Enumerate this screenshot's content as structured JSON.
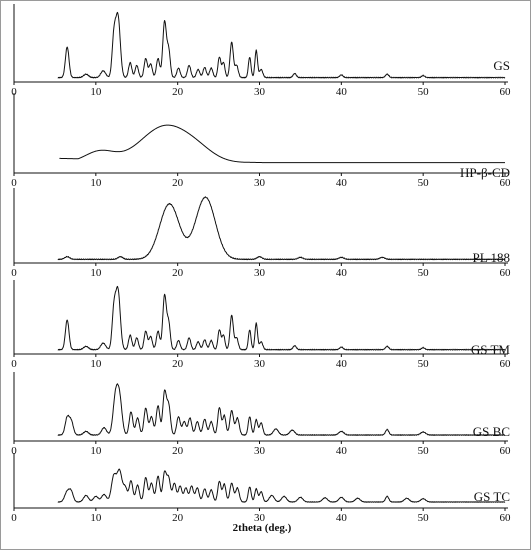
{
  "chart_data": {
    "type": "line",
    "title": "",
    "xlabel": "2theta (deg.)",
    "ylabel": "",
    "xlim": [
      0,
      60
    ],
    "x_ticks": [
      0,
      10,
      20,
      30,
      40,
      50,
      60
    ],
    "grid": false,
    "series": [
      {
        "name": "GS",
        "baseline": 3,
        "peaks": [
          [
            6.5,
            45,
            0.22
          ],
          [
            8.8,
            5,
            0.3
          ],
          [
            10.9,
            10,
            0.3
          ],
          [
            12.2,
            55,
            0.22
          ],
          [
            12.7,
            90,
            0.28
          ],
          [
            14.2,
            22,
            0.2
          ],
          [
            15.0,
            18,
            0.2
          ],
          [
            16.1,
            28,
            0.2
          ],
          [
            16.7,
            20,
            0.2
          ],
          [
            17.6,
            28,
            0.2
          ],
          [
            18.4,
            82,
            0.22
          ],
          [
            18.9,
            40,
            0.2
          ],
          [
            20.1,
            14,
            0.2
          ],
          [
            21.4,
            18,
            0.2
          ],
          [
            22.5,
            12,
            0.2
          ],
          [
            23.3,
            15,
            0.2
          ],
          [
            24.1,
            14,
            0.2
          ],
          [
            25.1,
            30,
            0.18
          ],
          [
            25.6,
            22,
            0.18
          ],
          [
            26.6,
            52,
            0.2
          ],
          [
            27.2,
            18,
            0.2
          ],
          [
            28.8,
            30,
            0.16
          ],
          [
            29.6,
            40,
            0.16
          ],
          [
            30.2,
            12,
            0.2
          ],
          [
            34.3,
            6,
            0.2
          ],
          [
            40.0,
            4,
            0.2
          ],
          [
            45.6,
            5,
            0.2
          ],
          [
            50.0,
            3,
            0.2
          ]
        ]
      },
      {
        "name": "HP-β-CD",
        "baseline": 3,
        "peaks": []
      },
      {
        "name": "PL 188",
        "baseline": 2,
        "peaks": [
          [
            19.0,
            84,
            1.2
          ],
          [
            23.4,
            94,
            1.2
          ],
          [
            6.5,
            4,
            0.3
          ],
          [
            13.0,
            4,
            0.3
          ],
          [
            30.0,
            4,
            0.3
          ],
          [
            35.0,
            3,
            0.3
          ],
          [
            40.0,
            3,
            0.3
          ],
          [
            45.0,
            3,
            0.3
          ]
        ]
      },
      {
        "name": "GS TM",
        "baseline": 3,
        "peaks": [
          [
            6.5,
            45,
            0.22
          ],
          [
            8.8,
            5,
            0.3
          ],
          [
            10.9,
            10,
            0.3
          ],
          [
            12.2,
            55,
            0.22
          ],
          [
            12.7,
            90,
            0.28
          ],
          [
            14.2,
            22,
            0.2
          ],
          [
            15.0,
            18,
            0.2
          ],
          [
            16.1,
            28,
            0.2
          ],
          [
            16.7,
            20,
            0.2
          ],
          [
            17.6,
            28,
            0.2
          ],
          [
            18.4,
            82,
            0.22
          ],
          [
            18.9,
            40,
            0.2
          ],
          [
            20.1,
            14,
            0.2
          ],
          [
            21.4,
            18,
            0.2
          ],
          [
            22.5,
            12,
            0.2
          ],
          [
            23.3,
            15,
            0.2
          ],
          [
            24.1,
            14,
            0.2
          ],
          [
            25.1,
            30,
            0.18
          ],
          [
            25.6,
            22,
            0.18
          ],
          [
            26.6,
            52,
            0.2
          ],
          [
            27.2,
            18,
            0.2
          ],
          [
            28.8,
            30,
            0.16
          ],
          [
            29.6,
            40,
            0.16
          ],
          [
            30.2,
            12,
            0.2
          ],
          [
            34.3,
            6,
            0.2
          ],
          [
            40.0,
            4,
            0.2
          ],
          [
            45.6,
            5,
            0.2
          ],
          [
            50.0,
            3,
            0.2
          ]
        ]
      },
      {
        "name": "GS BC",
        "baseline": 6,
        "peaks": [
          [
            6.5,
            28,
            0.25
          ],
          [
            7.0,
            22,
            0.25
          ],
          [
            8.8,
            6,
            0.3
          ],
          [
            11.0,
            12,
            0.3
          ],
          [
            12.4,
            60,
            0.3
          ],
          [
            12.9,
            58,
            0.3
          ],
          [
            14.3,
            38,
            0.22
          ],
          [
            15.1,
            28,
            0.22
          ],
          [
            16.1,
            44,
            0.22
          ],
          [
            16.8,
            30,
            0.22
          ],
          [
            17.6,
            48,
            0.22
          ],
          [
            18.4,
            70,
            0.22
          ],
          [
            18.9,
            48,
            0.22
          ],
          [
            20.1,
            30,
            0.22
          ],
          [
            20.8,
            22,
            0.22
          ],
          [
            21.5,
            28,
            0.22
          ],
          [
            22.4,
            22,
            0.22
          ],
          [
            23.3,
            26,
            0.22
          ],
          [
            24.1,
            22,
            0.22
          ],
          [
            25.1,
            45,
            0.2
          ],
          [
            25.7,
            32,
            0.2
          ],
          [
            26.6,
            40,
            0.22
          ],
          [
            27.3,
            28,
            0.22
          ],
          [
            28.8,
            30,
            0.18
          ],
          [
            29.6,
            25,
            0.18
          ],
          [
            30.2,
            20,
            0.2
          ],
          [
            32.0,
            10,
            0.3
          ],
          [
            34.0,
            8,
            0.3
          ],
          [
            40.0,
            6,
            0.3
          ],
          [
            45.6,
            9,
            0.2
          ],
          [
            50.0,
            5,
            0.3
          ]
        ]
      },
      {
        "name": "GS TC",
        "baseline": 8,
        "peaks": [
          [
            6.5,
            22,
            0.3
          ],
          [
            7.0,
            20,
            0.25
          ],
          [
            8.8,
            14,
            0.3
          ],
          [
            10.0,
            12,
            0.3
          ],
          [
            11.0,
            16,
            0.3
          ],
          [
            12.2,
            55,
            0.3
          ],
          [
            12.9,
            65,
            0.3
          ],
          [
            13.6,
            30,
            0.25
          ],
          [
            14.3,
            45,
            0.22
          ],
          [
            15.1,
            36,
            0.22
          ],
          [
            16.1,
            52,
            0.22
          ],
          [
            16.8,
            40,
            0.22
          ],
          [
            17.6,
            55,
            0.22
          ],
          [
            18.4,
            62,
            0.22
          ],
          [
            18.9,
            50,
            0.22
          ],
          [
            19.6,
            40,
            0.22
          ],
          [
            20.3,
            34,
            0.22
          ],
          [
            21.0,
            30,
            0.22
          ],
          [
            21.7,
            34,
            0.22
          ],
          [
            22.4,
            30,
            0.22
          ],
          [
            23.3,
            28,
            0.22
          ],
          [
            24.1,
            26,
            0.22
          ],
          [
            25.1,
            44,
            0.2
          ],
          [
            25.7,
            38,
            0.2
          ],
          [
            26.6,
            40,
            0.22
          ],
          [
            27.3,
            30,
            0.22
          ],
          [
            28.8,
            32,
            0.18
          ],
          [
            29.6,
            28,
            0.18
          ],
          [
            30.2,
            22,
            0.2
          ],
          [
            31.5,
            14,
            0.3
          ],
          [
            33.0,
            12,
            0.3
          ],
          [
            35.0,
            10,
            0.3
          ],
          [
            38.0,
            9,
            0.3
          ],
          [
            40.0,
            10,
            0.3
          ],
          [
            42.0,
            8,
            0.3
          ],
          [
            45.6,
            12,
            0.2
          ],
          [
            48.0,
            8,
            0.3
          ],
          [
            50.0,
            7,
            0.3
          ]
        ]
      }
    ]
  }
}
